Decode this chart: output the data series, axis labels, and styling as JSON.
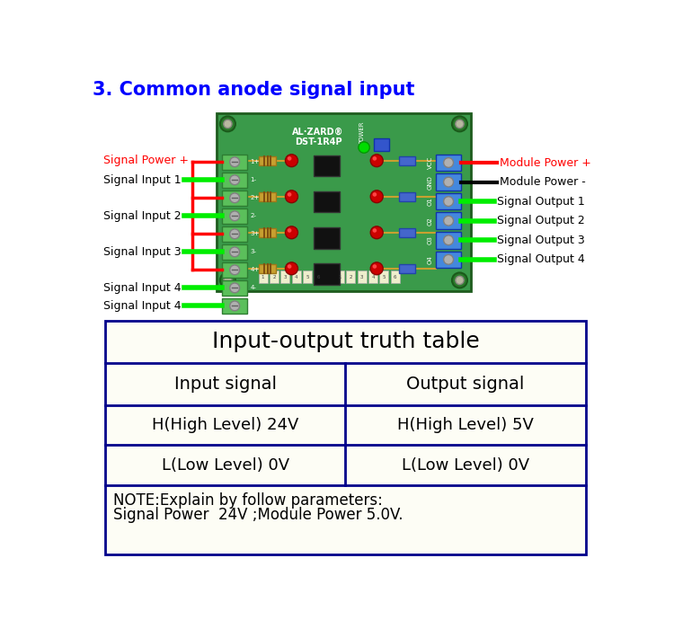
{
  "title": "3. Common anode signal input",
  "title_color": "#0000FF",
  "title_fontsize": 15,
  "bg_color": "#FFFFFF",
  "table_border_color": "#00008B",
  "table_header": "Input-output truth table",
  "table_col1_header": "Input signal",
  "table_col2_header": "Output signal",
  "table_row1_col1": "H(High Level) 24V",
  "table_row1_col2": "H(High Level) 5V",
  "table_row2_col1": "L(Low Level) 0V",
  "table_row2_col2": "L(Low Level) 0V",
  "table_note_line1": "NOTE:Explain by follow parameters:",
  "table_note_line2": "Signal Power  24V ;Module Power 5.0V.",
  "left_labels": [
    "Signal Power +",
    "Signal Input 1",
    "Signal Input 2",
    "Signal Input 3",
    "Signal Input 4"
  ],
  "right_labels": [
    "Module Power +",
    "Module Power -",
    "Signal Output 1",
    "Signal Output 2",
    "Signal Output 3",
    "Signal Output 4"
  ],
  "signal_power_color": "#FF0000",
  "module_power_plus_color": "#FF0000",
  "green_line_color": "#00EE00",
  "red_line_color": "#FF0000",
  "black_line_color": "#000000",
  "table_bg": "#FDFDF5",
  "board_green": "#3A9A4A",
  "board_dark_green": "#2A6E2A",
  "board_edge": "#1E5C1E"
}
